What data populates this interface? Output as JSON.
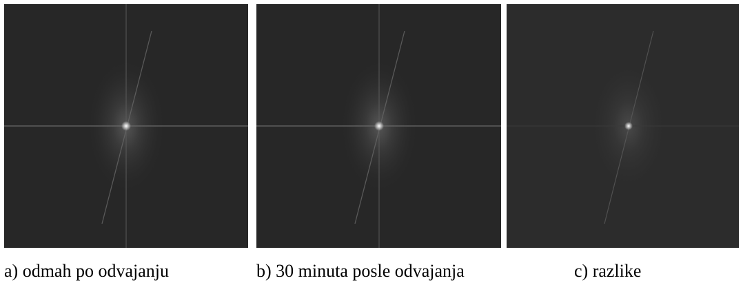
{
  "panels": [
    {
      "caption": "a) odmah po odvajanju"
    },
    {
      "caption": "b) 30 minuta posle odvajanja"
    },
    {
      "caption": "c) razlike"
    }
  ]
}
